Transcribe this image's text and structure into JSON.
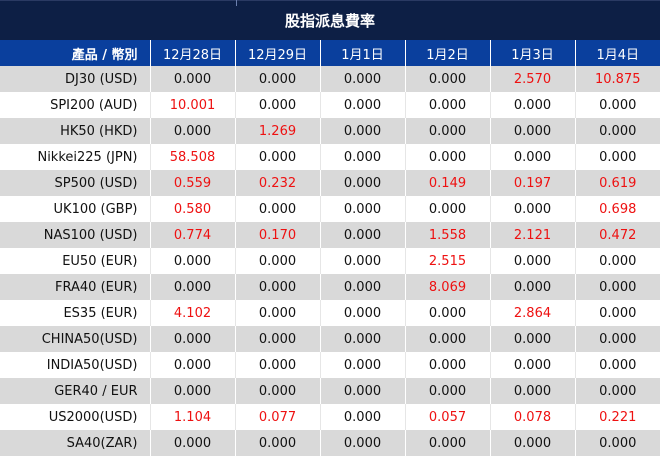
{
  "title": "股指派息費率",
  "header": {
    "product_label": "產品 / 幣別",
    "dates": [
      "12月28日",
      "12月29日",
      "1月1日",
      "1月2日",
      "1月3日",
      "1月4日"
    ]
  },
  "colors": {
    "header_bg": "#0a3f9d",
    "title_bg": "#0d1f45",
    "nonzero_value": "#ee1111",
    "stripe": "#d9d9d9"
  },
  "rows": [
    {
      "name": "DJ30 (USD)",
      "values": [
        "0.000",
        "0.000",
        "0.000",
        "0.000",
        "2.570",
        "10.875"
      ]
    },
    {
      "name": "SPI200 (AUD)",
      "values": [
        "10.001",
        "0.000",
        "0.000",
        "0.000",
        "0.000",
        "0.000"
      ]
    },
    {
      "name": "HK50 (HKD)",
      "values": [
        "0.000",
        "1.269",
        "0.000",
        "0.000",
        "0.000",
        "0.000"
      ]
    },
    {
      "name": "Nikkei225 (JPN)",
      "values": [
        "58.508",
        "0.000",
        "0.000",
        "0.000",
        "0.000",
        "0.000"
      ]
    },
    {
      "name": "SP500 (USD)",
      "values": [
        "0.559",
        "0.232",
        "0.000",
        "0.149",
        "0.197",
        "0.619"
      ]
    },
    {
      "name": "UK100 (GBP)",
      "values": [
        "0.580",
        "0.000",
        "0.000",
        "0.000",
        "0.000",
        "0.698"
      ]
    },
    {
      "name": "NAS100 (USD)",
      "values": [
        "0.774",
        "0.170",
        "0.000",
        "1.558",
        "2.121",
        "0.472"
      ]
    },
    {
      "name": "EU50 (EUR)",
      "values": [
        "0.000",
        "0.000",
        "0.000",
        "2.515",
        "0.000",
        "0.000"
      ]
    },
    {
      "name": "FRA40 (EUR)",
      "values": [
        "0.000",
        "0.000",
        "0.000",
        "8.069",
        "0.000",
        "0.000"
      ]
    },
    {
      "name": "ES35 (EUR)",
      "values": [
        "4.102",
        "0.000",
        "0.000",
        "0.000",
        "2.864",
        "0.000"
      ]
    },
    {
      "name": "CHINA50(USD)",
      "values": [
        "0.000",
        "0.000",
        "0.000",
        "0.000",
        "0.000",
        "0.000"
      ]
    },
    {
      "name": "INDIA50(USD)",
      "values": [
        "0.000",
        "0.000",
        "0.000",
        "0.000",
        "0.000",
        "0.000"
      ]
    },
    {
      "name": "GER40 / EUR",
      "values": [
        "0.000",
        "0.000",
        "0.000",
        "0.000",
        "0.000",
        "0.000"
      ]
    },
    {
      "name": "US2000(USD)",
      "values": [
        "1.104",
        "0.077",
        "0.000",
        "0.057",
        "0.078",
        "0.221"
      ]
    },
    {
      "name": "SA40(ZAR)",
      "values": [
        "0.000",
        "0.000",
        "0.000",
        "0.000",
        "0.000",
        "0.000"
      ]
    }
  ]
}
